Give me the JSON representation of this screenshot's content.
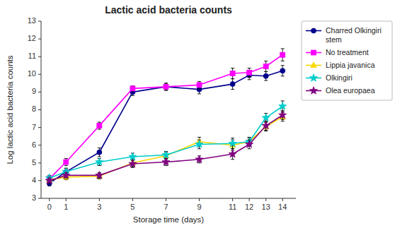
{
  "chart_data": {
    "type": "line",
    "title": "Lactic acid bacteria counts",
    "xlabel": "Storage time (days)",
    "ylabel": "Log lactic acid bacteria counts",
    "x": [
      0,
      1,
      3,
      5,
      7,
      9,
      11,
      12,
      13,
      14
    ],
    "xlim": [
      -0.5,
      14.8
    ],
    "xticks": [
      0,
      1,
      3,
      5,
      7,
      9,
      11,
      12,
      13,
      14
    ],
    "ylim": [
      3,
      13
    ],
    "yticks": [
      3,
      4,
      5,
      6,
      7,
      8,
      9,
      10,
      11,
      12,
      13
    ],
    "grid": false,
    "legend": "right",
    "series": [
      {
        "name": "Charred Olkingiri\nstem",
        "color": "#00008B",
        "marker": "circle",
        "values": [
          3.85,
          4.5,
          5.6,
          9.0,
          9.3,
          9.15,
          9.45,
          9.95,
          9.9,
          10.2
        ],
        "errors": [
          0.15,
          0.2,
          0.25,
          0.2,
          0.2,
          0.25,
          0.3,
          0.25,
          0.25,
          0.3
        ]
      },
      {
        "name": "No treatment",
        "color": "#FF00FF",
        "marker": "square",
        "values": [
          4.1,
          5.05,
          7.1,
          9.2,
          9.3,
          9.4,
          10.05,
          10.1,
          10.45,
          11.1
        ],
        "errors": [
          0.15,
          0.2,
          0.2,
          0.15,
          0.2,
          0.2,
          0.3,
          0.25,
          0.3,
          0.35
        ]
      },
      {
        "name": "Lippia javanica",
        "color": "#FFD700",
        "marker": "triangle",
        "values": [
          4.05,
          4.2,
          4.25,
          5.0,
          5.4,
          6.2,
          6.0,
          6.2,
          7.05,
          7.6
        ],
        "errors": [
          0.15,
          0.15,
          0.15,
          0.25,
          0.2,
          0.25,
          0.3,
          0.2,
          0.25,
          0.25
        ]
      },
      {
        "name": "Olkingiri",
        "color": "#00CCCC",
        "marker": "star",
        "values": [
          4.15,
          4.5,
          5.05,
          5.35,
          5.45,
          6.05,
          6.1,
          6.2,
          7.55,
          8.2
        ],
        "errors": [
          0.15,
          0.2,
          0.2,
          0.2,
          0.2,
          0.25,
          0.3,
          0.25,
          0.25,
          0.3
        ]
      },
      {
        "name": "Olea europaea",
        "color": "#800080",
        "marker": "star",
        "values": [
          4.0,
          4.3,
          4.3,
          4.95,
          5.05,
          5.2,
          5.5,
          6.05,
          7.1,
          7.7
        ],
        "errors": [
          0.15,
          0.15,
          0.15,
          0.2,
          0.2,
          0.2,
          0.3,
          0.25,
          0.25,
          0.25
        ]
      }
    ]
  }
}
